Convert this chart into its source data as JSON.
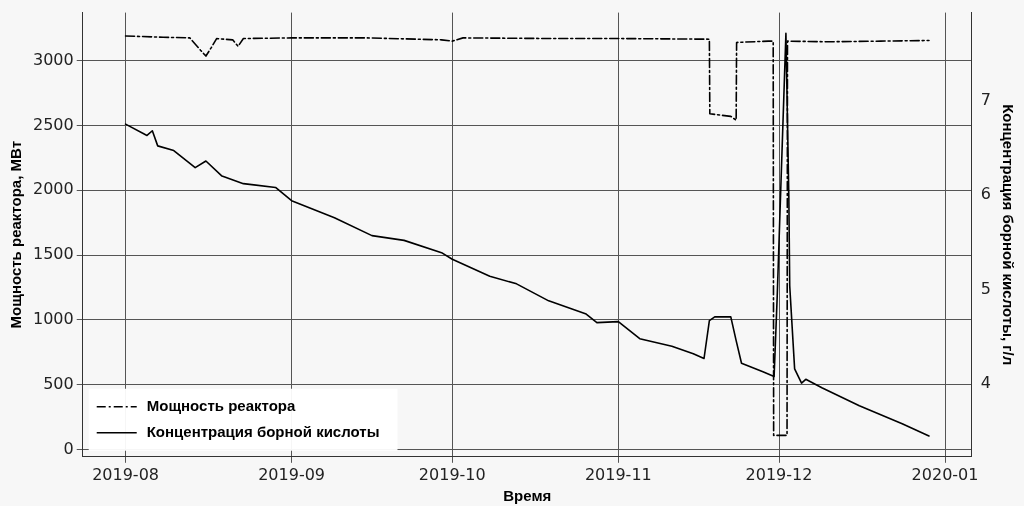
{
  "chart_data": {
    "type": "line",
    "xlabel": "Время",
    "ylabel": "Мощность реактора, МВт",
    "y2label": "Концентрация борной кислоты, г/л",
    "xlim": [
      "2019-07-24",
      "2020-01-06"
    ],
    "xticks": [
      "2019-08",
      "2019-09",
      "2019-10",
      "2019-11",
      "2019-12",
      "2020-01"
    ],
    "ylim": [
      -55,
      3370
    ],
    "yticks": [
      0,
      500,
      1000,
      1500,
      2000,
      2500,
      3000
    ],
    "y2lim": [
      3.23,
      7.93
    ],
    "y2ticks": [
      4,
      5,
      6,
      7
    ],
    "grid": true,
    "legend": "bottom left",
    "series": [
      {
        "name": "Мощность реактора",
        "color": "#000000",
        "line_style": "dashdot",
        "x": [
          "2019-08-01",
          "2019-08-08",
          "2019-08-13",
          "2019-08-15",
          "2019-08-16",
          "2019-08-17",
          "2019-08-18",
          "2019-08-21",
          "2019-08-22",
          "2019-08-23",
          "2019-09-01",
          "2019-09-15",
          "2019-09-29",
          "2019-10-01",
          "2019-10-03",
          "2019-10-20",
          "2019-11-01",
          "2019-11-18T00:00",
          "2019-11-18T02:00",
          "2019-11-22",
          "2019-11-23T00:00",
          "2019-11-23T02:00",
          "2019-11-29",
          "2019-11-29T22:00",
          "2019-11-30T00:00",
          "2019-12-02T12:00",
          "2019-12-02T14:00",
          "2019-12-10",
          "2019-12-20",
          "2019-12-29"
        ],
        "values": [
          3190,
          3180,
          3175,
          3080,
          3035,
          3100,
          3170,
          3160,
          3110,
          3170,
          3175,
          3175,
          3160,
          3150,
          3175,
          3170,
          3170,
          3165,
          2590,
          2570,
          2540,
          3140,
          3150,
          3150,
          110,
          110,
          3150,
          3145,
          3150,
          3155
        ]
      },
      {
        "name": "Концентрация борной кислоты",
        "color": "#000000",
        "line_style": "solid",
        "axis": "y2",
        "x": [
          "2019-08-01",
          "2019-08-05",
          "2019-08-06",
          "2019-08-07",
          "2019-08-10",
          "2019-08-14",
          "2019-08-16",
          "2019-08-19",
          "2019-08-23",
          "2019-08-29",
          "2019-09-01",
          "2019-09-05",
          "2019-09-09",
          "2019-09-16",
          "2019-09-22",
          "2019-09-29",
          "2019-10-01",
          "2019-10-08",
          "2019-10-13",
          "2019-10-19",
          "2019-10-26",
          "2019-10-28",
          "2019-11-01",
          "2019-11-05",
          "2019-11-11",
          "2019-11-15",
          "2019-11-17",
          "2019-11-18",
          "2019-11-19",
          "2019-11-22",
          "2019-11-23",
          "2019-11-24",
          "2019-11-28",
          "2019-11-30T02:00",
          "2019-11-30T16:00",
          "2019-12-02T07:00",
          "2019-12-02T20:00",
          "2019-12-03T00:00",
          "2019-12-03T22:00",
          "2019-12-05T05:00",
          "2019-12-06",
          "2019-12-09",
          "2019-12-16",
          "2019-12-24",
          "2019-12-29"
        ],
        "values": [
          6.75,
          6.63,
          6.68,
          6.52,
          6.47,
          6.29,
          6.36,
          6.2,
          6.12,
          6.08,
          5.94,
          5.85,
          5.76,
          5.57,
          5.52,
          5.39,
          5.32,
          5.14,
          5.06,
          4.88,
          4.74,
          4.65,
          4.66,
          4.48,
          4.4,
          4.32,
          4.27,
          4.67,
          4.71,
          4.71,
          4.46,
          4.22,
          4.13,
          4.08,
          4.93,
          7.71,
          5.99,
          5.04,
          4.16,
          4.01,
          4.05,
          3.96,
          3.77,
          3.58,
          3.45
        ]
      }
    ]
  }
}
